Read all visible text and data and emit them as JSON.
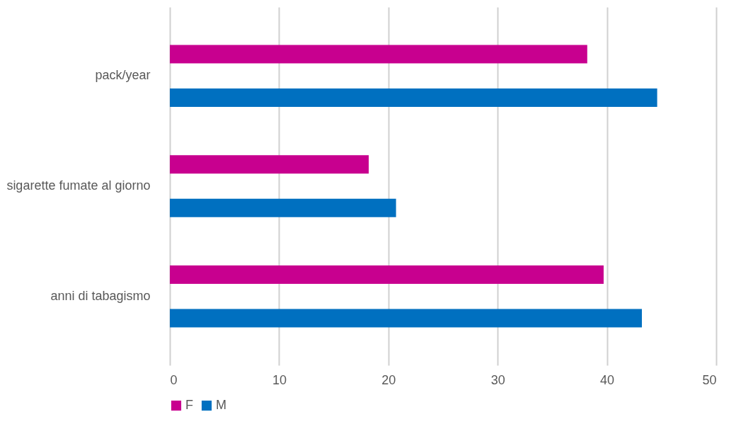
{
  "chart_data": {
    "type": "bar",
    "orientation": "horizontal",
    "categories": [
      "pack/year",
      "sigarette fumate al giorno",
      "anni di tabagismo"
    ],
    "series": [
      {
        "name": "F",
        "color": "#c8008f",
        "values": [
          38.2,
          18.2,
          39.7
        ]
      },
      {
        "name": "M",
        "color": "#0070c0",
        "values": [
          44.6,
          20.7,
          43.2
        ]
      }
    ],
    "xlim": [
      0,
      50
    ],
    "xticks": [
      0,
      10,
      20,
      30,
      40,
      50
    ],
    "grid": "x",
    "legend": "bottom"
  }
}
